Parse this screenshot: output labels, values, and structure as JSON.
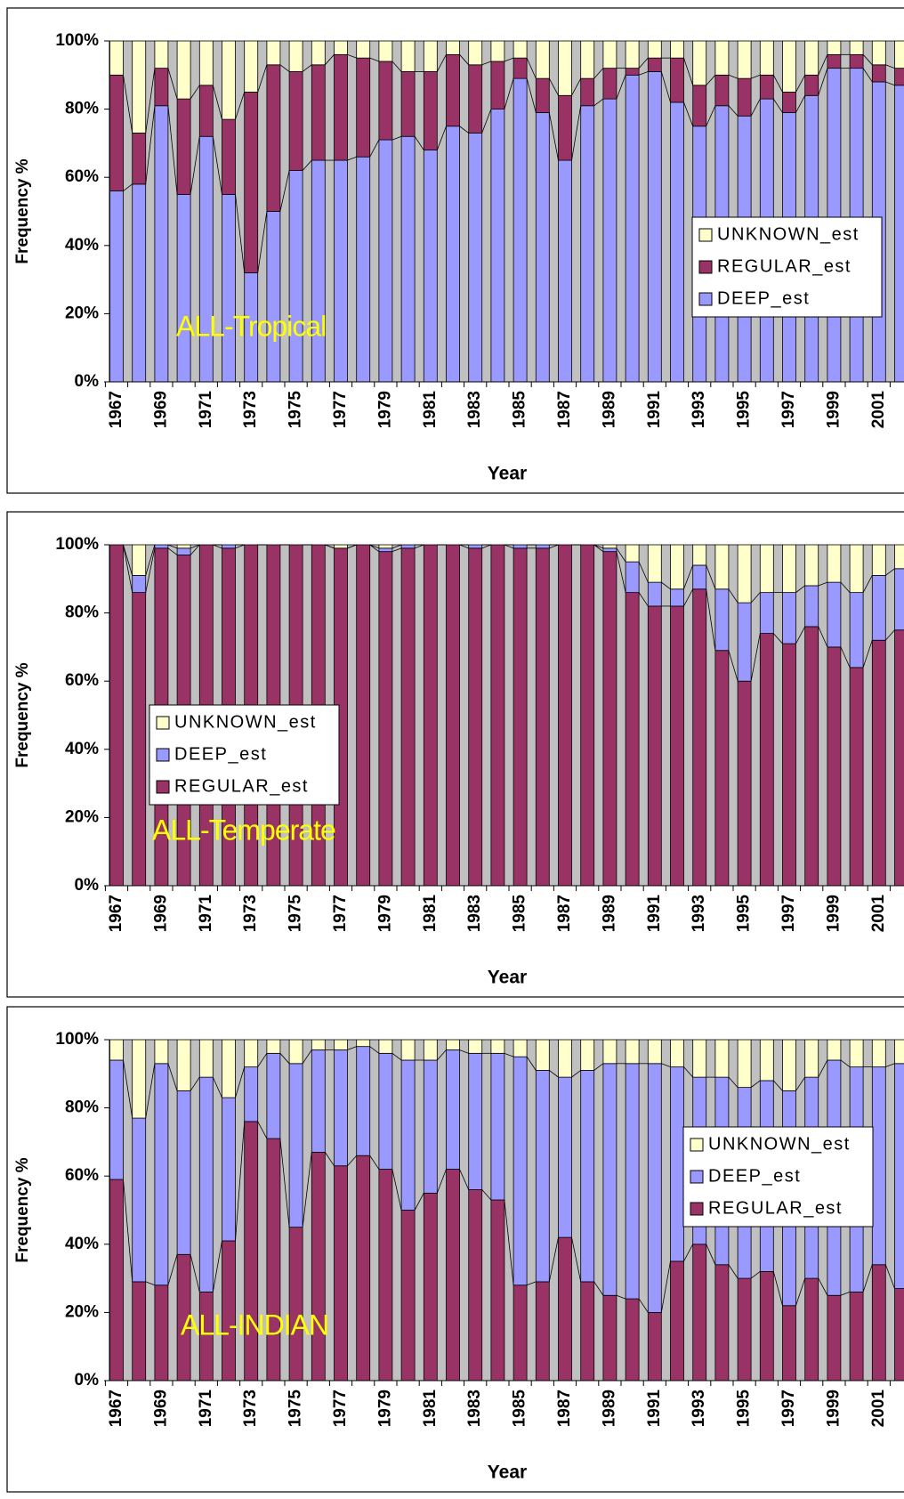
{
  "chart_data": [
    {
      "type": "bar",
      "stacking": "percent",
      "ylabel": "Frequency %",
      "xlabel": "Year",
      "annotation": "ALL-Tropical",
      "legend": "right",
      "categories": [
        "1967",
        null,
        "1969",
        null,
        "1971",
        null,
        "1973",
        null,
        "1975",
        null,
        "1977",
        null,
        "1979",
        null,
        "1981",
        null,
        "1983",
        null,
        "1985",
        null,
        "1987",
        null,
        "1989",
        null,
        "1991",
        null,
        "1993",
        null,
        "1995",
        null,
        "1997",
        null,
        "1999",
        null,
        "2001",
        null
      ],
      "ylim": [
        0,
        100
      ],
      "yticks": [
        {
          "value": 0,
          "label": "0%"
        },
        {
          "value": 20,
          "label": "20%"
        },
        {
          "value": 40,
          "label": "40%"
        },
        {
          "value": 60,
          "label": "60%"
        },
        {
          "value": 80,
          "label": "80%"
        },
        {
          "value": 100,
          "label": "100%"
        }
      ],
      "series": [
        {
          "name": "DEEP_est",
          "color": "#9999ff",
          "values": [
            56,
            58,
            81,
            55,
            72,
            55,
            32,
            50,
            62,
            65,
            65,
            66,
            71,
            72,
            68,
            75,
            73,
            80,
            89,
            79,
            65,
            81,
            83,
            90,
            91,
            82,
            75,
            81,
            78,
            83,
            79,
            84,
            92,
            92,
            88,
            87
          ]
        },
        {
          "name": "REGULAR_est",
          "color": "#993366",
          "values": [
            34,
            15,
            11,
            28,
            15,
            22,
            53,
            43,
            29,
            28,
            31,
            29,
            23,
            19,
            23,
            21,
            20,
            14,
            6,
            10,
            19,
            8,
            9,
            2,
            4,
            13,
            12,
            9,
            11,
            7,
            6,
            6,
            4,
            4,
            5,
            5
          ]
        },
        {
          "name": "UNKNOWN_est",
          "color": "#ffffcc",
          "values": [
            10,
            27,
            8,
            17,
            13,
            23,
            15,
            7,
            9,
            7,
            4,
            5,
            6,
            9,
            9,
            4,
            7,
            6,
            5,
            11,
            16,
            11,
            8,
            8,
            5,
            5,
            13,
            10,
            11,
            10,
            15,
            10,
            4,
            4,
            7,
            8
          ]
        }
      ]
    },
    {
      "type": "bar",
      "stacking": "percent",
      "ylabel": "Frequency %",
      "xlabel": "Year",
      "annotation": "ALL-Temperate",
      "legend": "left",
      "categories": [
        "1967",
        null,
        "1969",
        null,
        "1971",
        null,
        "1973",
        null,
        "1975",
        null,
        "1977",
        null,
        "1979",
        null,
        "1981",
        null,
        "1983",
        null,
        "1985",
        null,
        "1987",
        null,
        "1989",
        null,
        "1991",
        null,
        "1993",
        null,
        "1995",
        null,
        "1997",
        null,
        "1999",
        null,
        "2001",
        null
      ],
      "ylim": [
        0,
        100
      ],
      "yticks": [
        {
          "value": 0,
          "label": "0%"
        },
        {
          "value": 20,
          "label": "20%"
        },
        {
          "value": 40,
          "label": "40%"
        },
        {
          "value": 60,
          "label": "60%"
        },
        {
          "value": 80,
          "label": "80%"
        },
        {
          "value": 100,
          "label": "100%"
        }
      ],
      "series": [
        {
          "name": "REGULAR_est",
          "color": "#993366",
          "values": [
            100,
            86,
            99,
            97,
            100,
            99,
            100,
            100,
            100,
            100,
            99,
            100,
            98,
            99,
            100,
            100,
            99,
            100,
            99,
            99,
            100,
            100,
            98,
            86,
            82,
            82,
            87,
            69,
            60,
            74,
            71,
            76,
            70,
            64,
            72,
            75
          ]
        },
        {
          "name": "DEEP_est",
          "color": "#9999ff",
          "values": [
            0,
            5,
            1,
            2,
            0,
            1,
            0,
            0,
            0,
            0,
            0,
            0,
            1,
            1,
            0,
            0,
            1,
            0,
            1,
            1,
            0,
            0,
            1,
            9,
            7,
            5,
            7,
            18,
            23,
            12,
            15,
            12,
            19,
            22,
            19,
            18
          ]
        },
        {
          "name": "UNKNOWN_est",
          "color": "#ffffcc",
          "values": [
            0,
            9,
            0,
            1,
            0,
            0,
            0,
            0,
            0,
            0,
            1,
            0,
            1,
            0,
            0,
            0,
            0,
            0,
            0,
            0,
            0,
            0,
            1,
            5,
            11,
            13,
            6,
            13,
            17,
            14,
            14,
            12,
            11,
            14,
            9,
            7
          ]
        }
      ]
    },
    {
      "type": "bar",
      "stacking": "percent",
      "ylabel": "Frequency %",
      "xlabel": "Year",
      "annotation": "ALL-INDIAN",
      "legend": "upper right",
      "categories": [
        "1967",
        null,
        "1969",
        null,
        "1971",
        null,
        "1973",
        null,
        "1975",
        null,
        "1977",
        null,
        "1979",
        null,
        "1981",
        null,
        "1983",
        null,
        "1985",
        null,
        "1987",
        null,
        "1989",
        null,
        "1991",
        null,
        "1993",
        null,
        "1995",
        null,
        "1997",
        null,
        "1999",
        null,
        "2001",
        null
      ],
      "ylim": [
        0,
        100
      ],
      "yticks": [
        {
          "value": 0,
          "label": "0%"
        },
        {
          "value": 20,
          "label": "20%"
        },
        {
          "value": 40,
          "label": "40%"
        },
        {
          "value": 60,
          "label": "60%"
        },
        {
          "value": 80,
          "label": "80%"
        },
        {
          "value": 100,
          "label": "100%"
        }
      ],
      "series": [
        {
          "name": "REGULAR_est",
          "color": "#993366",
          "values": [
            59,
            29,
            28,
            37,
            26,
            41,
            76,
            71,
            45,
            67,
            63,
            66,
            62,
            50,
            55,
            62,
            56,
            53,
            28,
            29,
            42,
            29,
            25,
            24,
            20,
            35,
            40,
            34,
            30,
            32,
            22,
            30,
            25,
            26,
            34,
            27
          ]
        },
        {
          "name": "DEEP_est",
          "color": "#9999ff",
          "values": [
            35,
            48,
            65,
            48,
            63,
            42,
            16,
            25,
            48,
            30,
            34,
            32,
            34,
            44,
            39,
            35,
            40,
            43,
            67,
            62,
            47,
            62,
            68,
            69,
            73,
            57,
            49,
            55,
            56,
            56,
            63,
            59,
            69,
            66,
            58,
            66
          ]
        },
        {
          "name": "UNKNOWN_est",
          "color": "#ffffcc",
          "values": [
            6,
            23,
            7,
            15,
            11,
            17,
            8,
            4,
            7,
            3,
            3,
            2,
            4,
            6,
            6,
            3,
            4,
            4,
            5,
            9,
            11,
            9,
            7,
            7,
            7,
            8,
            11,
            11,
            14,
            12,
            15,
            11,
            6,
            8,
            8,
            7
          ]
        }
      ]
    }
  ]
}
